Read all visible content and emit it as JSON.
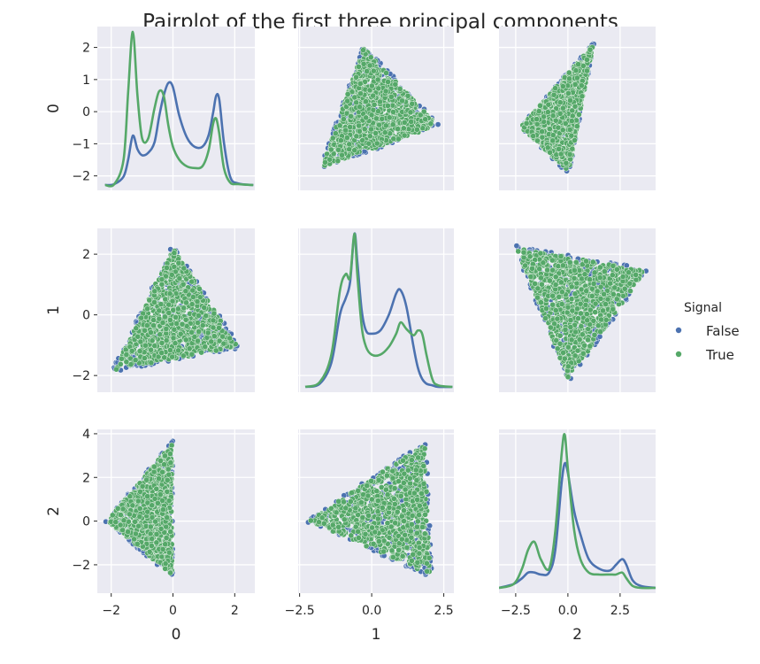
{
  "chart_data": {
    "type": "scatter",
    "title": "Pairplot of the first three principal components",
    "variables": [
      "0",
      "1",
      "2"
    ],
    "diag_kind": "kde",
    "grid": true,
    "legend": {
      "title": "Signal",
      "placement": "right",
      "entries": [
        {
          "name": "False",
          "color": "#4c72b0"
        },
        {
          "name": "True",
          "color": "#55a868"
        }
      ]
    },
    "axes": {
      "0": {
        "range": [
          -2.45,
          2.65
        ],
        "ticks": [
          -2,
          0,
          2
        ],
        "tick_labels": [
          "−2",
          "0",
          "2"
        ],
        "y_ticks": [
          -2,
          -1,
          0,
          1,
          2
        ],
        "y_tick_labels": [
          "−2",
          "−1",
          "0",
          "1",
          "2"
        ]
      },
      "1": {
        "range": [
          -2.55,
          2.85
        ],
        "ticks": [
          -2.5,
          0.0,
          2.5
        ],
        "tick_labels": [
          "−2.5",
          "0.0",
          "2.5"
        ],
        "y_ticks": [
          -2,
          0,
          2
        ],
        "y_tick_labels": [
          "−2",
          "0",
          "2"
        ]
      },
      "2": {
        "range": [
          -3.3,
          4.2
        ],
        "ticks": [
          -2.5,
          0.0,
          2.5
        ],
        "tick_labels": [
          "−2.5",
          "0.0",
          "2.5"
        ],
        "y_ticks": [
          -2,
          0,
          2,
          4
        ],
        "y_tick_labels": [
          "−2",
          "0",
          "2",
          "4"
        ]
      }
    },
    "diagonal_kde": {
      "0": {
        "x": [
          -2.2,
          -1.9,
          -1.6,
          -1.45,
          -1.3,
          -1.15,
          -1.0,
          -0.8,
          -0.6,
          -0.45,
          -0.3,
          -0.15,
          0.0,
          0.2,
          0.45,
          0.7,
          0.95,
          1.15,
          1.3,
          1.4,
          1.5,
          1.65,
          1.85,
          2.1,
          2.6
        ],
        "series": [
          {
            "name": "False",
            "values": [
              0.0,
              0.01,
              0.1,
              0.3,
              0.58,
              0.42,
              0.35,
              0.38,
              0.5,
              0.8,
              1.05,
              1.2,
              1.15,
              0.82,
              0.56,
              0.45,
              0.45,
              0.58,
              0.85,
              1.05,
              1.0,
              0.5,
              0.1,
              0.02,
              0.0
            ]
          },
          {
            "name": "True",
            "values": [
              0.0,
              0.01,
              0.3,
              1.1,
              1.8,
              1.05,
              0.55,
              0.55,
              0.9,
              1.1,
              1.05,
              0.7,
              0.45,
              0.3,
              0.22,
              0.2,
              0.22,
              0.4,
              0.72,
              0.78,
              0.6,
              0.2,
              0.03,
              0.01,
              0.0
            ]
          }
        ]
      },
      "1": {
        "x": [
          -2.3,
          -1.8,
          -1.4,
          -1.1,
          -0.9,
          -0.75,
          -0.6,
          -0.5,
          -0.35,
          -0.2,
          0.0,
          0.3,
          0.6,
          0.85,
          1.0,
          1.2,
          1.45,
          1.6,
          1.75,
          1.9,
          2.1,
          2.3,
          2.8
        ],
        "series": [
          {
            "name": "False",
            "values": [
              0.0,
              0.02,
              0.15,
              0.45,
              0.55,
              0.65,
              0.95,
              0.78,
              0.48,
              0.35,
              0.33,
              0.35,
              0.45,
              0.58,
              0.6,
              0.5,
              0.25,
              0.12,
              0.05,
              0.02,
              0.01,
              0.0,
              0.0
            ]
          },
          {
            "name": "True",
            "values": [
              0.0,
              0.03,
              0.2,
              0.6,
              0.7,
              0.68,
              0.95,
              0.7,
              0.38,
              0.25,
              0.2,
              0.2,
              0.25,
              0.33,
              0.4,
              0.36,
              0.32,
              0.35,
              0.33,
              0.2,
              0.05,
              0.01,
              0.0
            ]
          }
        ]
      },
      "2": {
        "x": [
          -3.3,
          -2.6,
          -2.2,
          -1.9,
          -1.6,
          -1.3,
          -0.9,
          -0.6,
          -0.3,
          -0.15,
          0.0,
          0.3,
          0.6,
          1.0,
          1.5,
          2.0,
          2.3,
          2.6,
          2.8,
          3.1,
          3.5,
          4.2
        ],
        "series": [
          {
            "name": "False",
            "values": [
              0.0,
              0.02,
              0.05,
              0.08,
              0.08,
              0.07,
              0.08,
              0.2,
              0.55,
              0.65,
              0.6,
              0.4,
              0.28,
              0.15,
              0.1,
              0.09,
              0.12,
              0.15,
              0.12,
              0.04,
              0.01,
              0.0
            ]
          },
          {
            "name": "True",
            "values": [
              0.0,
              0.02,
              0.1,
              0.2,
              0.24,
              0.15,
              0.1,
              0.3,
              0.7,
              0.8,
              0.62,
              0.3,
              0.15,
              0.08,
              0.07,
              0.07,
              0.07,
              0.08,
              0.05,
              0.01,
              0.0,
              0.0
            ]
          }
        ]
      }
    }
  }
}
